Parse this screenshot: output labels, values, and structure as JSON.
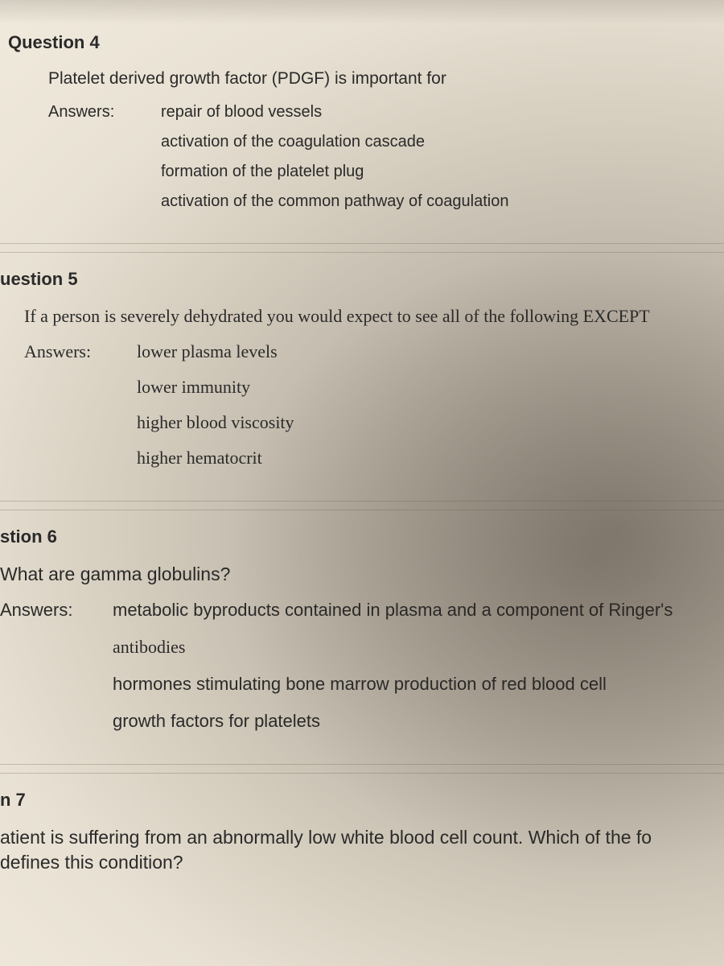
{
  "colors": {
    "text": "#2a2a2a",
    "divider": "rgba(120,110,95,0.35)",
    "bg_light": "#f0eadd",
    "bg_mid": "#d4ccbd",
    "bg_shadow": "#9a9186"
  },
  "typography": {
    "base_family": "Arial, Helvetica, sans-serif",
    "serif_family": "Georgia, 'Times New Roman', serif",
    "header_size_pt": 17,
    "body_size_pt": 16
  },
  "questions": [
    {
      "header": "Question 4",
      "prompt": "Platelet derived growth factor (PDGF) is important for",
      "answers_label": "Answers:",
      "answers": [
        "repair of blood vessels",
        "activation of the coagulation cascade",
        "formation of the platelet plug",
        "activation of the common pathway of coagulation"
      ]
    },
    {
      "header": "uestion 5",
      "prompt": "If a person is severely dehydrated you would expect to see all of the following EXCEPT",
      "answers_label": "Answers:",
      "answers": [
        "lower plasma levels",
        "lower immunity",
        "higher blood viscosity",
        "higher hematocrit"
      ]
    },
    {
      "header": "stion 6",
      "prompt": "What are gamma globulins?",
      "answers_label": "Answers:",
      "answers": [
        "metabolic byproducts contained in plasma and a component of Ringer's",
        "antibodies",
        "hormones stimulating bone marrow production of red blood cell",
        "growth factors for platelets"
      ]
    },
    {
      "header": "n 7",
      "prompt": "atient is suffering from an abnormally low white blood cell count. Which of the fo",
      "prompt_line2": " defines this condition?",
      "answers_label": "",
      "answers": []
    }
  ]
}
